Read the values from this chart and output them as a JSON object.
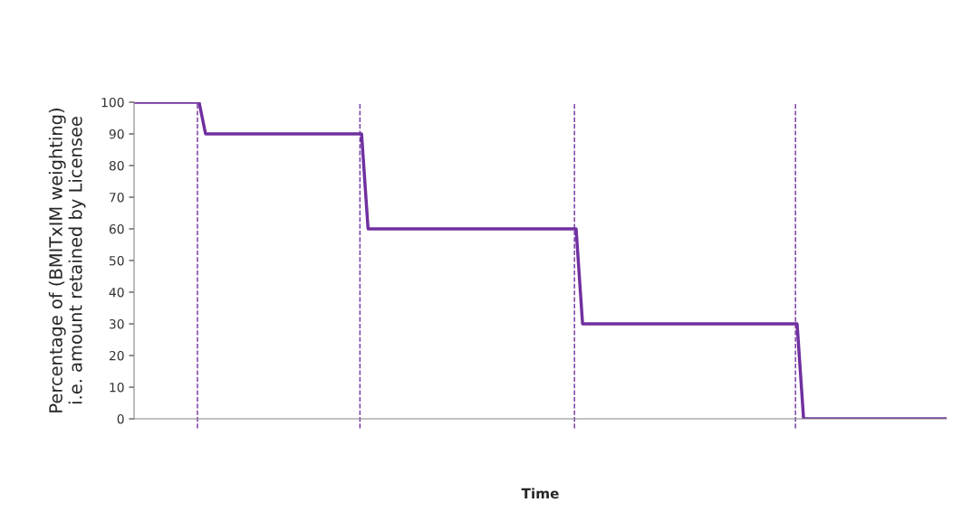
{
  "chart_data": {
    "type": "line",
    "xlabel": "Time",
    "ylabel": "Percentage of (BMITxIM weighting)\ni.e. amount retained by Licensee",
    "categories": [
      null,
      null,
      null,
      null,
      null,
      null,
      null,
      null,
      null,
      null,
      null,
      null,
      null,
      null,
      null,
      null,
      null,
      null,
      null,
      null,
      null,
      null,
      null,
      null,
      null,
      null,
      null,
      null,
      null,
      null,
      null,
      null,
      null,
      null,
      null,
      null,
      null,
      null,
      null,
      null,
      null,
      null,
      null,
      null,
      null,
      null,
      null,
      null,
      null,
      null,
      null,
      null,
      null,
      null,
      null,
      null,
      null,
      null,
      null,
      null,
      null,
      null,
      null,
      null,
      null,
      null,
      null,
      null,
      null,
      null,
      null,
      null,
      null,
      null,
      null,
      null,
      null,
      null,
      null,
      null,
      null,
      null,
      null,
      null,
      null,
      null,
      null,
      null,
      null,
      null,
      null,
      null,
      null,
      null,
      null,
      null,
      null,
      null,
      null,
      null,
      null,
      null,
      null,
      null,
      null,
      null,
      null,
      null,
      null,
      null,
      null,
      null,
      null,
      null,
      null,
      null,
      null,
      null,
      null,
      null,
      null,
      null,
      null,
      null,
      null,
      null
    ],
    "series": [
      {
        "color": "#7030a0",
        "values": [
          100,
          100,
          100,
          100,
          100,
          100,
          100,
          100,
          100,
          100,
          100,
          90,
          90,
          90,
          90,
          90,
          90,
          90,
          90,
          90,
          90,
          90,
          90,
          90,
          90,
          90,
          90,
          90,
          90,
          90,
          90,
          90,
          90,
          90,
          90,
          90,
          60,
          60,
          60,
          60,
          60,
          60,
          60,
          60,
          60,
          60,
          60,
          60,
          60,
          60,
          60,
          60,
          60,
          60,
          60,
          60,
          60,
          60,
          60,
          60,
          60,
          60,
          60,
          60,
          60,
          60,
          60,
          60,
          60,
          30,
          30,
          30,
          30,
          30,
          30,
          30,
          30,
          30,
          30,
          30,
          30,
          30,
          30,
          30,
          30,
          30,
          30,
          30,
          30,
          30,
          30,
          30,
          30,
          30,
          30,
          30,
          30,
          30,
          30,
          30,
          30,
          30,
          30,
          0,
          0,
          0,
          0,
          0,
          0,
          0,
          0,
          0,
          0,
          0,
          0,
          0,
          0,
          0,
          0,
          0,
          0,
          0,
          0,
          0,
          0,
          0
        ]
      }
    ],
    "ylim": [
      0,
      100
    ],
    "yticks": [
      0,
      10,
      20,
      30,
      40,
      50,
      60,
      70,
      80,
      90,
      100
    ],
    "tick_labels": "y",
    "grid": false,
    "legend": false,
    "marker": "none",
    "line_style": "solid"
  }
}
